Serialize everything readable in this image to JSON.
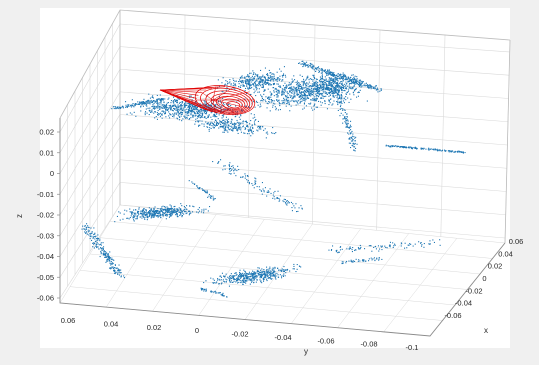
{
  "chart_data": {
    "type": "scatter3d",
    "title": "",
    "xlabel": "x",
    "ylabel": "y",
    "zlabel": "z",
    "xlim": [
      -0.06,
      0.06
    ],
    "ylim": [
      -0.1,
      0.06
    ],
    "zlim": [
      -0.06,
      0.025
    ],
    "grid": true,
    "x_ticks": [
      "-0.06",
      "-0.04",
      "-0.02",
      "0",
      "0.02",
      "0.04",
      "0.06"
    ],
    "y_ticks": [
      "0.06",
      "0.04",
      "0.02",
      "0",
      "-0.02",
      "-0.04",
      "-0.06",
      "-0.08",
      "-0.1"
    ],
    "z_ticks": [
      "0.02",
      "0.01",
      "0",
      "-0.01",
      "-0.02",
      "-0.03",
      "-0.04",
      "-0.05",
      "-0.06"
    ],
    "colors": {
      "points": "#1f77b4",
      "fitted_shape": "#e00000",
      "grid": "#d9d9d9",
      "axes_box": "#bdbdbd",
      "pane": "#ffffff"
    },
    "series": [
      {
        "kind": "point-cloud",
        "marker": "point",
        "approx_point_count": 4000
      },
      {
        "kind": "red-wireframe-ellipsoid"
      }
    ]
  }
}
